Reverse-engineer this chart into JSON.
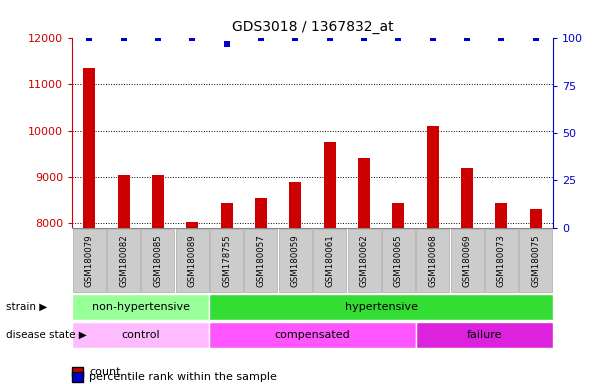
{
  "title": "GDS3018 / 1367832_at",
  "samples": [
    "GSM180079",
    "GSM180082",
    "GSM180085",
    "GSM180089",
    "GSM178755",
    "GSM180057",
    "GSM180059",
    "GSM180061",
    "GSM180062",
    "GSM180065",
    "GSM180068",
    "GSM180069",
    "GSM180073",
    "GSM180075"
  ],
  "counts": [
    11350,
    9050,
    9050,
    8020,
    8450,
    8550,
    8900,
    9750,
    9400,
    8450,
    10100,
    9200,
    8450,
    8300
  ],
  "percentile_ranks": [
    100,
    100,
    100,
    100,
    97,
    100,
    100,
    100,
    100,
    100,
    100,
    100,
    100,
    100
  ],
  "ylim_left": [
    7900,
    12000
  ],
  "ylim_right": [
    0,
    100
  ],
  "yticks_left": [
    8000,
    9000,
    10000,
    11000,
    12000
  ],
  "yticks_right": [
    0,
    25,
    50,
    75,
    100
  ],
  "bar_color": "#cc0000",
  "dot_color": "#0000cc",
  "strain_groups": [
    {
      "label": "non-hypertensive",
      "start": 0,
      "end": 4,
      "color": "#99ff99"
    },
    {
      "label": "hypertensive",
      "start": 4,
      "end": 14,
      "color": "#33dd33"
    }
  ],
  "disease_groups": [
    {
      "label": "control",
      "start": 0,
      "end": 4,
      "color": "#ffbbff"
    },
    {
      "label": "compensated",
      "start": 4,
      "end": 10,
      "color": "#ff55ff"
    },
    {
      "label": "failure",
      "start": 10,
      "end": 14,
      "color": "#dd22dd"
    }
  ],
  "legend_items": [
    {
      "label": "count",
      "color": "#cc0000"
    },
    {
      "label": "percentile rank within the sample",
      "color": "#0000cc"
    }
  ],
  "left_label_color": "#cc0000",
  "right_label_color": "#0000cc",
  "bg_color": "#ffffff",
  "tick_bg_color": "#cccccc",
  "tick_border_color": "#aaaaaa"
}
